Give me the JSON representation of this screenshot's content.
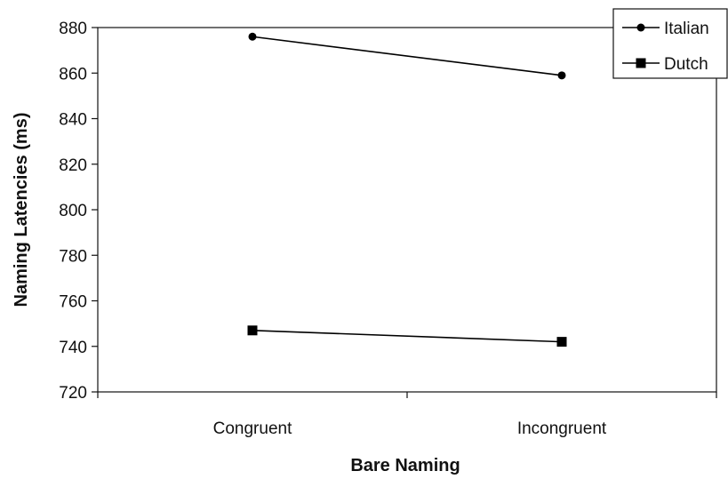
{
  "chart_data": {
    "type": "line",
    "title": "",
    "xlabel": "Bare Naming",
    "ylabel": "Naming Latencies (ms)",
    "categories": [
      "Congruent",
      "Incongruent"
    ],
    "ylim": [
      720,
      880
    ],
    "yticks": [
      720,
      740,
      760,
      780,
      800,
      820,
      840,
      860,
      880
    ],
    "grid": false,
    "legend_position": "top-right",
    "series": [
      {
        "name": "Italian",
        "marker": "circle",
        "color": "#000000",
        "values": [
          876,
          859
        ]
      },
      {
        "name": "Dutch",
        "marker": "square",
        "color": "#000000",
        "values": [
          747,
          742
        ]
      }
    ]
  }
}
